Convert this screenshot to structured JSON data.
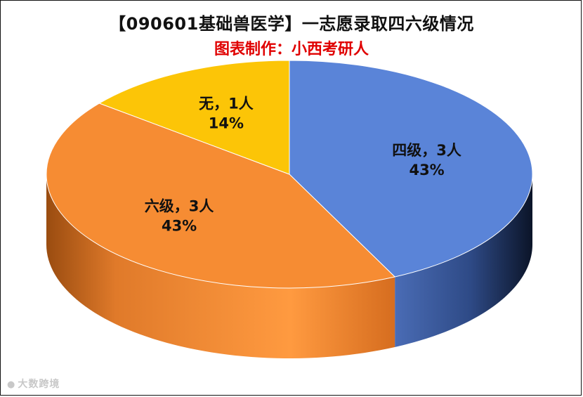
{
  "chart_data": {
    "type": "pie",
    "title": "【090601基础兽医学】一志愿录取四六级情况",
    "subtitle": "图表制作：小西考研人",
    "slices": [
      {
        "label": "四级",
        "count": 3,
        "count_label": "四级，3人",
        "percent_label": "43%",
        "color": "#5a84d8"
      },
      {
        "label": "六级",
        "count": 3,
        "count_label": "六级，3人",
        "percent_label": "43%",
        "color": "#f68c33"
      },
      {
        "label": "无",
        "count": 1,
        "count_label": "无，1人",
        "percent_label": "14%",
        "color": "#fcc507"
      }
    ]
  },
  "watermark": {
    "icon": "weibo-icon",
    "text": "大数跨境"
  }
}
